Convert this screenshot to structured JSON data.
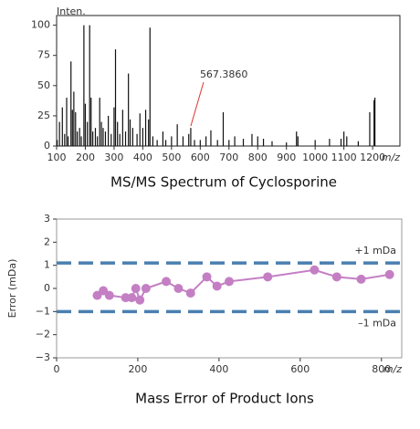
{
  "chart_data": [
    {
      "type": "spectrum",
      "ylabel": "Inten.",
      "xlabel": "m/z",
      "caption": "MS/MS Spectrum of Cyclosporine",
      "color": "#111111",
      "x": [
        102,
        110,
        120,
        128,
        135,
        140,
        150,
        155,
        160,
        166,
        172,
        180,
        186,
        195,
        200,
        207,
        215,
        220,
        226,
        235,
        242,
        250,
        256,
        262,
        270,
        280,
        290,
        300,
        305,
        312,
        320,
        330,
        340,
        350,
        356,
        365,
        380,
        390,
        400,
        410,
        420,
        425,
        435,
        450,
        470,
        480,
        500,
        520,
        540,
        560,
        567,
        580,
        600,
        620,
        637,
        660,
        680,
        700,
        720,
        750,
        780,
        800,
        820,
        850,
        900,
        935,
        940,
        1000,
        1050,
        1090,
        1100,
        1110,
        1150,
        1190,
        1205,
        1208
      ],
      "values": [
        5,
        20,
        32,
        10,
        40,
        8,
        70,
        30,
        45,
        28,
        12,
        15,
        8,
        100,
        35,
        20,
        100,
        40,
        12,
        15,
        8,
        40,
        20,
        15,
        12,
        25,
        10,
        32,
        80,
        20,
        10,
        30,
        12,
        60,
        22,
        15,
        10,
        27,
        15,
        30,
        22,
        98,
        8,
        5,
        12,
        5,
        8,
        18,
        8,
        10,
        15,
        5,
        5,
        8,
        13,
        5,
        28,
        5,
        8,
        6,
        10,
        8,
        6,
        4,
        3,
        12,
        8,
        5,
        6,
        6,
        12,
        8,
        4,
        28,
        38,
        40
      ],
      "xlim": [
        100,
        1295
      ],
      "xticks": [
        100,
        200,
        300,
        400,
        500,
        600,
        700,
        800,
        900,
        1000,
        1100,
        1200
      ],
      "ylim": [
        0,
        108
      ],
      "yticks": [
        0,
        25,
        50,
        75,
        100
      ],
      "annotation": "567.3860",
      "annotation_color": "#e03030"
    },
    {
      "type": "line",
      "ylabel": "Error (mDa)",
      "xlabel": "m/z",
      "caption": "Mass Error of Product Ions",
      "color": "#c47fc4",
      "x": [
        100,
        115,
        130,
        170,
        185,
        195,
        205,
        220,
        270,
        300,
        330,
        370,
        395,
        425,
        520,
        635,
        690,
        750,
        820
      ],
      "values": [
        -0.3,
        -0.1,
        -0.3,
        -0.4,
        -0.4,
        0,
        -0.5,
        0,
        0.3,
        0,
        -0.2,
        0.5,
        0.1,
        0.3,
        0.5,
        0.8,
        0.5,
        0.4,
        0.6
      ],
      "xlim": [
        0,
        850
      ],
      "xticks": [
        0,
        200,
        400,
        600,
        800
      ],
      "ylim": [
        -3,
        3
      ],
      "yticks": [
        {
          "value": -3,
          "label": "−3"
        },
        {
          "value": -2,
          "label": "−2"
        },
        {
          "value": -1,
          "label": "−1"
        },
        0,
        1,
        2,
        3
      ],
      "reference_lines": [
        {
          "value": 1.1,
          "label": "+1 mDa"
        },
        {
          "value": -1,
          "label": "–1 mDa"
        }
      ],
      "reference_color": "#4a7fb0"
    }
  ]
}
